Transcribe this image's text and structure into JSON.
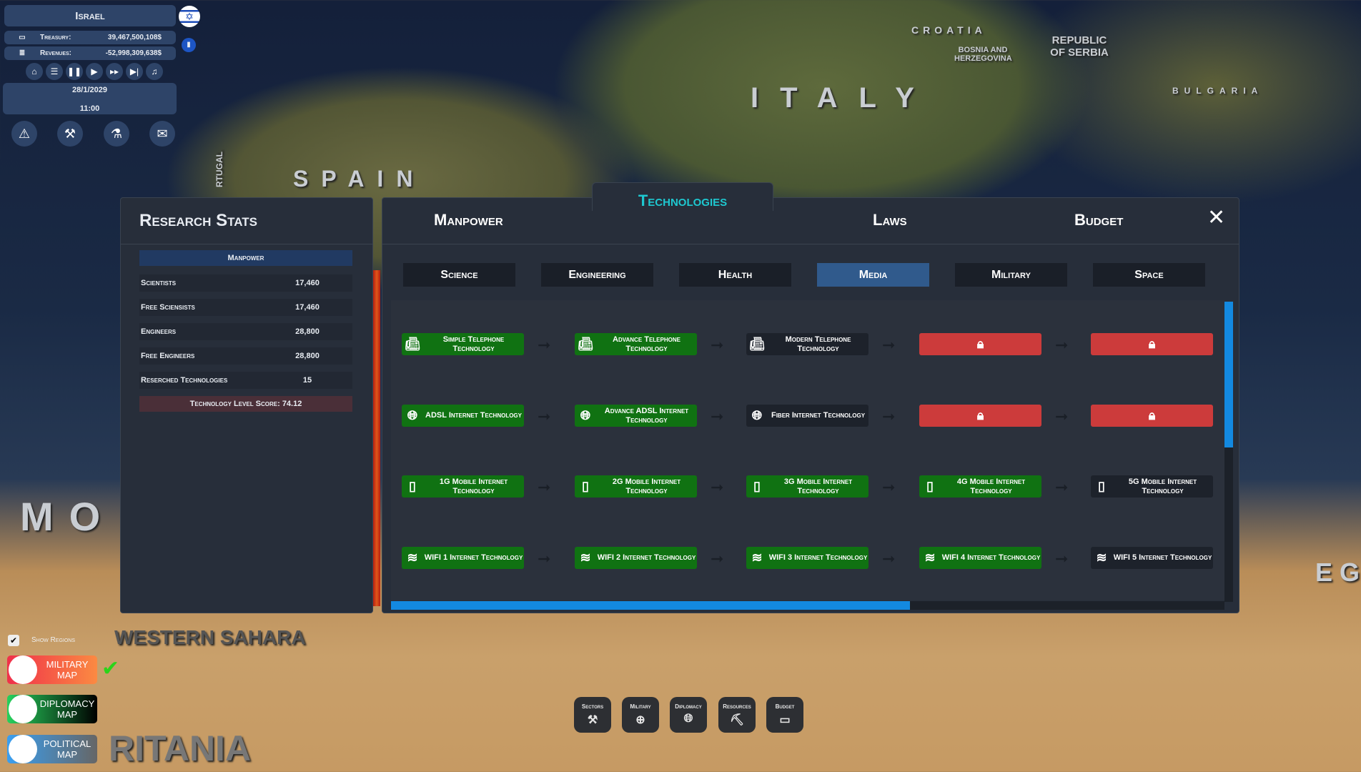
{
  "map_labels": [
    "SPAIN",
    "ITALY",
    "CROATIA",
    "BOSNIA AND HERZEGOVINA",
    "REPUBLIC OF SERBIA",
    "BULGARIA",
    "MO",
    "EG",
    "WESTERN SAHARA",
    "RITANIA",
    "RTUGAL"
  ],
  "country": {
    "name": "Israel",
    "treasury_label": "Treasury:",
    "treasury": "39,467,500,108$",
    "revenues_label": "Revenues:",
    "revenues": "-52,998,309,638$",
    "date": "28/1/2029",
    "time": "11:00"
  },
  "controls": [
    "home-icon",
    "menu-icon",
    "pause-icon",
    "play-icon",
    "fast-forward-icon",
    "skip-icon",
    "music-icon"
  ],
  "research_stats": {
    "title": "Research Stats",
    "header": "Manpower",
    "rows": [
      {
        "label": "Scientists",
        "value": "17,460"
      },
      {
        "label": "Free Sciensists",
        "value": "17,460"
      },
      {
        "label": "Engineers",
        "value": "28,800"
      },
      {
        "label": "Free Engineers",
        "value": "28,800"
      },
      {
        "label": "Reserched Technologies",
        "value": "15"
      }
    ],
    "score": "Technology Level Score: 74.12"
  },
  "tabs": {
    "manpower": "Manpower",
    "technologies": "Technologies",
    "laws": "Laws",
    "budget": "Budget",
    "active": "Technologies"
  },
  "subtabs": [
    "Science",
    "Engineering",
    "Health",
    "Media",
    "Military",
    "Space"
  ],
  "active_subtab": "Media",
  "colors": {
    "researched": "#107212",
    "available": "#1d222b",
    "locked": "#cc3b3b",
    "accent": "#1ec8d0"
  },
  "tech_rows": [
    [
      {
        "name": "Simple Telephone Technology",
        "state": "researched"
      },
      {
        "name": "Advance Telephone Technology",
        "state": "researched"
      },
      {
        "name": "Modern Telephone Technology",
        "state": "available"
      },
      {
        "name": "",
        "state": "locked"
      },
      {
        "name": "",
        "state": "locked"
      }
    ],
    [
      {
        "name": "ADSL Internet Technology",
        "state": "researched"
      },
      {
        "name": "Advance ADSL Internet Technology",
        "state": "researched"
      },
      {
        "name": "Fiber Internet Technology",
        "state": "available"
      },
      {
        "name": "",
        "state": "locked"
      },
      {
        "name": "",
        "state": "locked"
      }
    ],
    [
      {
        "name": "1G Mobile Internet Technology",
        "state": "researched"
      },
      {
        "name": "2G Mobile Internet Technology",
        "state": "researched"
      },
      {
        "name": "3G Mobile Internet Technology",
        "state": "researched"
      },
      {
        "name": "4G Mobile Internet Technology",
        "state": "researched"
      },
      {
        "name": "5G Mobile Internet Technology",
        "state": "available"
      }
    ],
    [
      {
        "name": "WIFI 1 Internet Technology",
        "state": "researched"
      },
      {
        "name": "WIFI 2 Internet Technology",
        "state": "researched"
      },
      {
        "name": "WIFI 3 Internet Technology",
        "state": "researched"
      },
      {
        "name": "WIFI 4 Internet Technology",
        "state": "researched"
      },
      {
        "name": "WIFI 5 Internet Technology",
        "state": "available"
      }
    ]
  ],
  "bottom_buttons": [
    {
      "label": "Sectors",
      "icon": "tools-icon"
    },
    {
      "label": "Military",
      "icon": "crosshair-icon"
    },
    {
      "label": "Diplomacy",
      "icon": "globe-icon"
    },
    {
      "label": "Resources",
      "icon": "pickaxe-icon"
    },
    {
      "label": "Budget",
      "icon": "money-icon"
    }
  ],
  "show_regions": {
    "label": "Show Regions",
    "checked": true
  },
  "map_modes": [
    {
      "label": "MILITARY MAP",
      "active": true
    },
    {
      "label": "DIPLOMACY MAP"
    },
    {
      "label": "POLITICAL MAP"
    }
  ]
}
